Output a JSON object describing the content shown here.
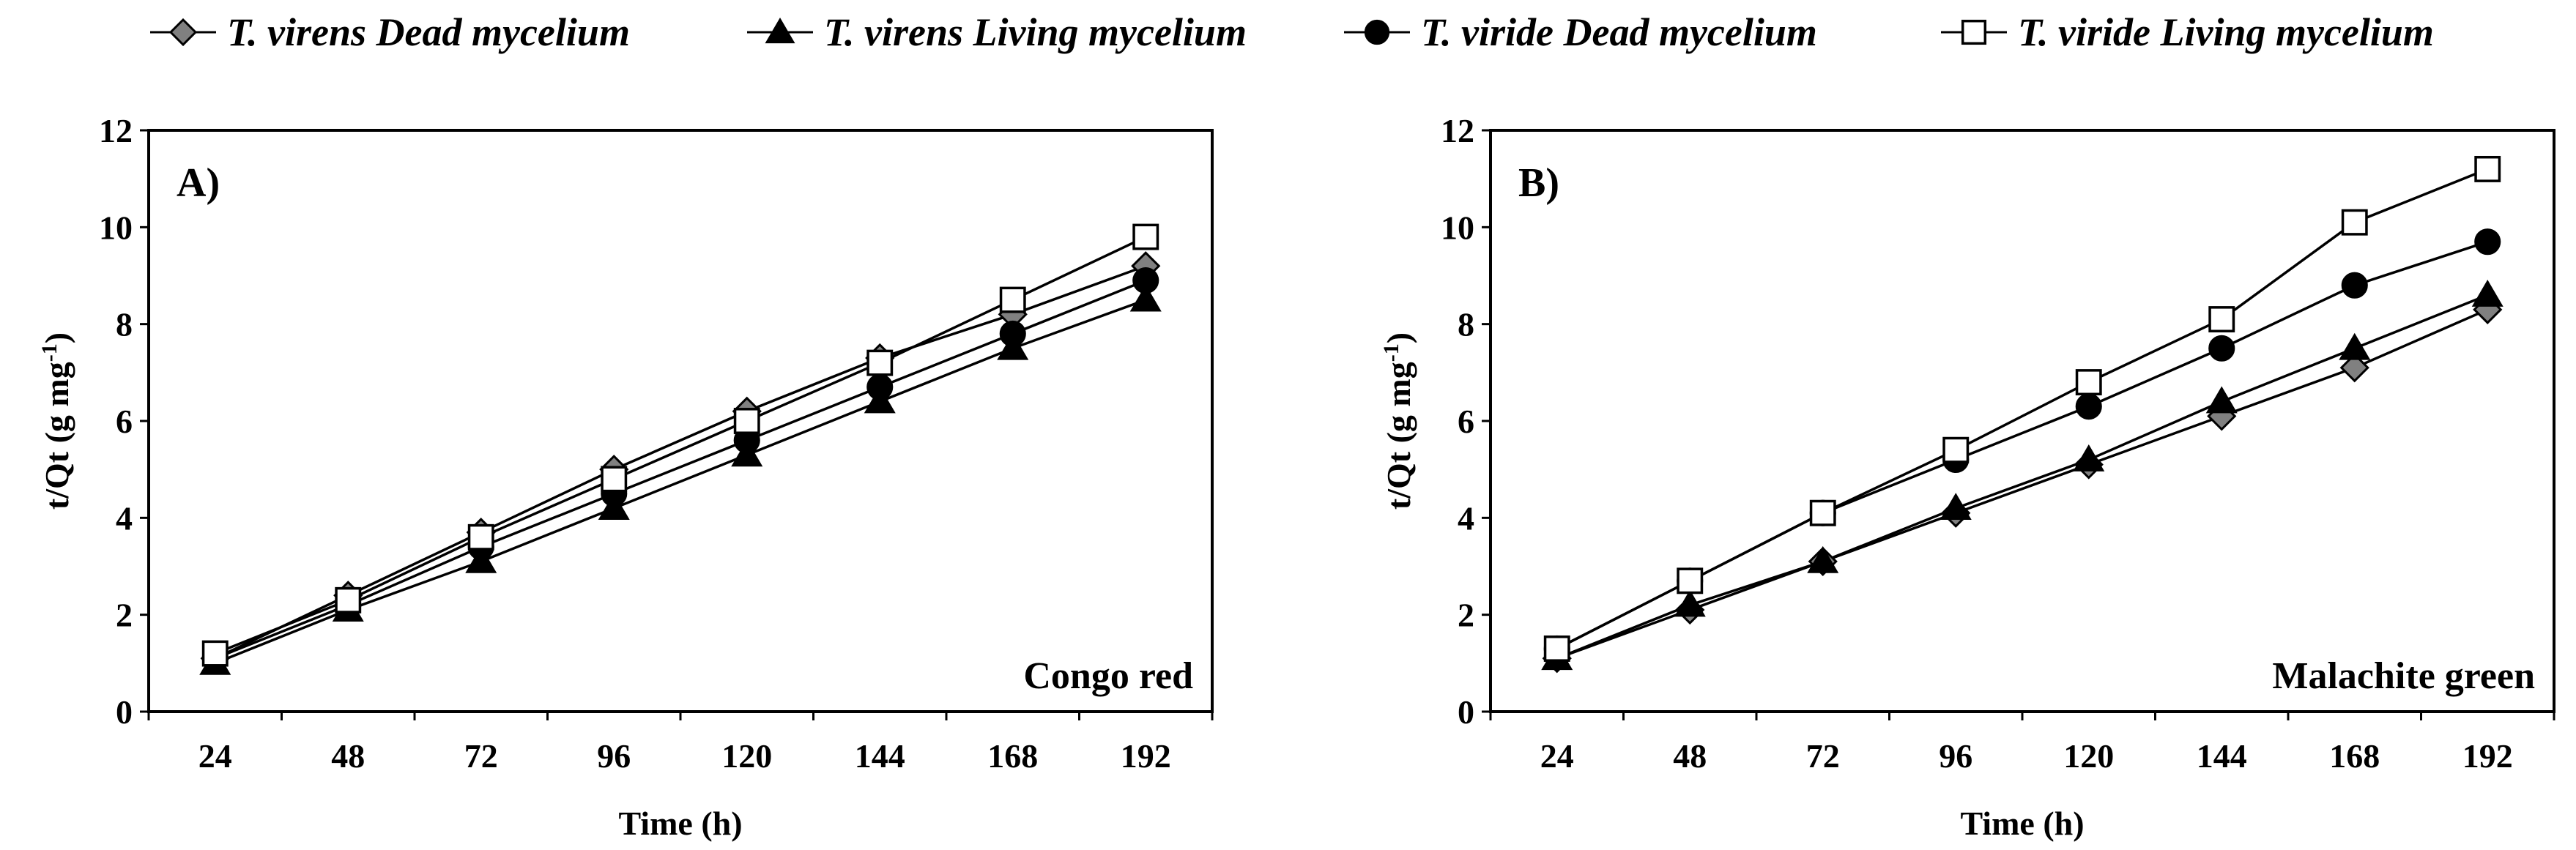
{
  "legend": [
    {
      "label": "T. virens Dead mycelium",
      "marker": "diamond",
      "fill": "#808080"
    },
    {
      "label": "T. virens Living mycelium",
      "marker": "triangle",
      "fill": "#000000"
    },
    {
      "label": "T. viride Dead mycelium",
      "marker": "circle",
      "fill": "#000000"
    },
    {
      "label": "T. viride Living mycelium",
      "marker": "square",
      "fill": "#ffffff"
    }
  ],
  "chart_data": [
    {
      "type": "line",
      "panel_label": "A)",
      "dye": "Congo red",
      "xlabel": "Time (h)",
      "ylabel": "t/Qt (g mg",
      "ylabel_sup": "-1",
      "ylabel_end": ")",
      "categories": [
        "24",
        "48",
        "72",
        "96",
        "120",
        "144",
        "168",
        "192"
      ],
      "ylim": [
        0,
        12
      ],
      "yticks": [
        "0",
        "2",
        "4",
        "6",
        "8",
        "10",
        "12"
      ],
      "grid": false,
      "series": [
        {
          "name": "T. virens Dead mycelium",
          "values": [
            1.1,
            2.4,
            3.7,
            5.0,
            6.2,
            7.3,
            8.2,
            9.2
          ]
        },
        {
          "name": "T. virens Living mycelium",
          "values": [
            1.0,
            2.1,
            3.1,
            4.2,
            5.3,
            6.4,
            7.5,
            8.5
          ]
        },
        {
          "name": "T. viride Dead mycelium",
          "values": [
            1.1,
            2.2,
            3.4,
            4.5,
            5.6,
            6.7,
            7.8,
            8.9
          ]
        },
        {
          "name": "T. viride Living mycelium",
          "values": [
            1.2,
            2.3,
            3.6,
            4.8,
            6.0,
            7.2,
            8.5,
            9.8
          ]
        }
      ]
    },
    {
      "type": "line",
      "panel_label": "B)",
      "dye": "Malachite green",
      "xlabel": "Time (h)",
      "ylabel": "t/Qt (g mg",
      "ylabel_sup": "-1",
      "ylabel_end": ")",
      "categories": [
        "24",
        "48",
        "72",
        "96",
        "120",
        "144",
        "168",
        "192"
      ],
      "ylim": [
        0,
        12
      ],
      "yticks": [
        "0",
        "2",
        "4",
        "6",
        "8",
        "10",
        "12"
      ],
      "grid": false,
      "series": [
        {
          "name": "T. virens Dead mycelium",
          "values": [
            1.1,
            2.1,
            3.1,
            4.1,
            5.1,
            6.1,
            7.1,
            8.3
          ]
        },
        {
          "name": "T. virens Living mycelium",
          "values": [
            1.1,
            2.2,
            3.1,
            4.2,
            5.2,
            6.4,
            7.5,
            8.6
          ]
        },
        {
          "name": "T. viride Dead mycelium",
          "values": [
            1.3,
            2.7,
            4.1,
            5.2,
            6.3,
            7.5,
            8.8,
            9.7
          ]
        },
        {
          "name": "T. viride Living mycelium",
          "values": [
            1.3,
            2.7,
            4.1,
            5.4,
            6.8,
            8.1,
            10.1,
            11.2
          ]
        }
      ]
    }
  ]
}
